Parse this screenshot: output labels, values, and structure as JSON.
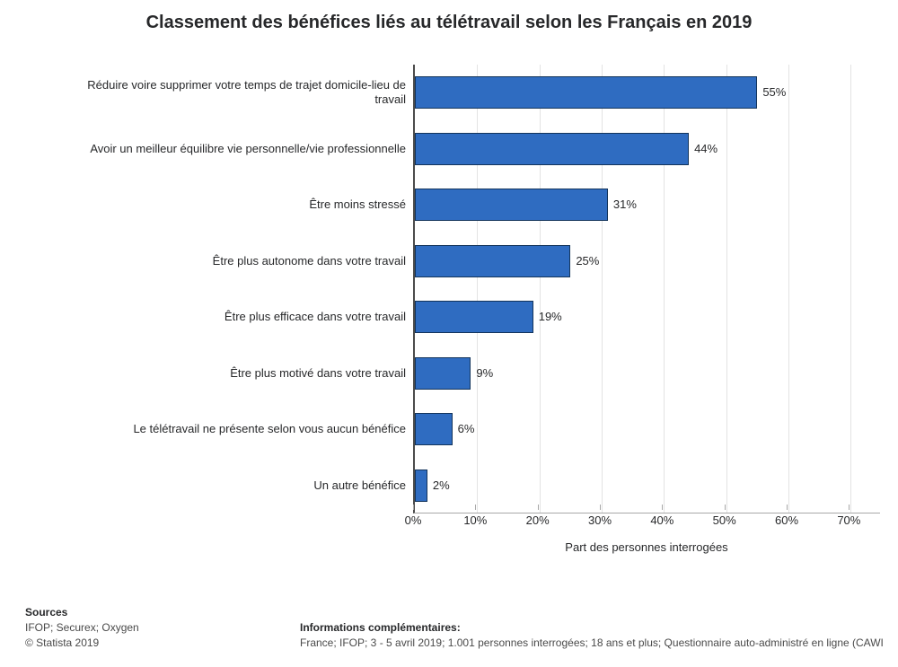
{
  "chart": {
    "type": "bar-horizontal",
    "title": "Classement des bénéfices liés au télétravail selon les Français en 2019",
    "title_fontsize": 20,
    "x_axis_label": "Part des personnes interrogées",
    "bar_color": "#2f6cc1",
    "bar_border_color": "#13345b",
    "background_color": "#ffffff",
    "grid_color": "#e3e3e3",
    "axis_color": "#4b4b4b",
    "label_fontsize": 13,
    "xlim": [
      0,
      75
    ],
    "xtick_step": 10,
    "xticks": [
      "0%",
      "10%",
      "20%",
      "30%",
      "40%",
      "50%",
      "60%",
      "70%"
    ],
    "value_suffix": "%",
    "categories": [
      "Réduire voire supprimer votre temps de trajet domicile-lieu de travail",
      "Avoir un meilleur équilibre vie personnelle/vie professionnelle",
      "Être moins stressé",
      "Être plus autonome dans votre travail",
      "Être plus efficace dans votre travail",
      "Être plus motivé dans votre travail",
      "Le télétravail ne présente selon vous aucun bénéfice",
      "Un autre bénéfice"
    ],
    "values": [
      55,
      44,
      31,
      25,
      19,
      9,
      6,
      2
    ]
  },
  "footer": {
    "sources_heading": "Sources",
    "sources_text": "IFOP; Securex; Oxygen",
    "copyright": "© Statista 2019",
    "info_heading": "Informations complémentaires:",
    "info_text": "France; IFOP; 3 - 5 avril 2019; 1.001 personnes interrogées; 18 ans et plus; Questionnaire auto-administré en ligne (CAWI"
  }
}
